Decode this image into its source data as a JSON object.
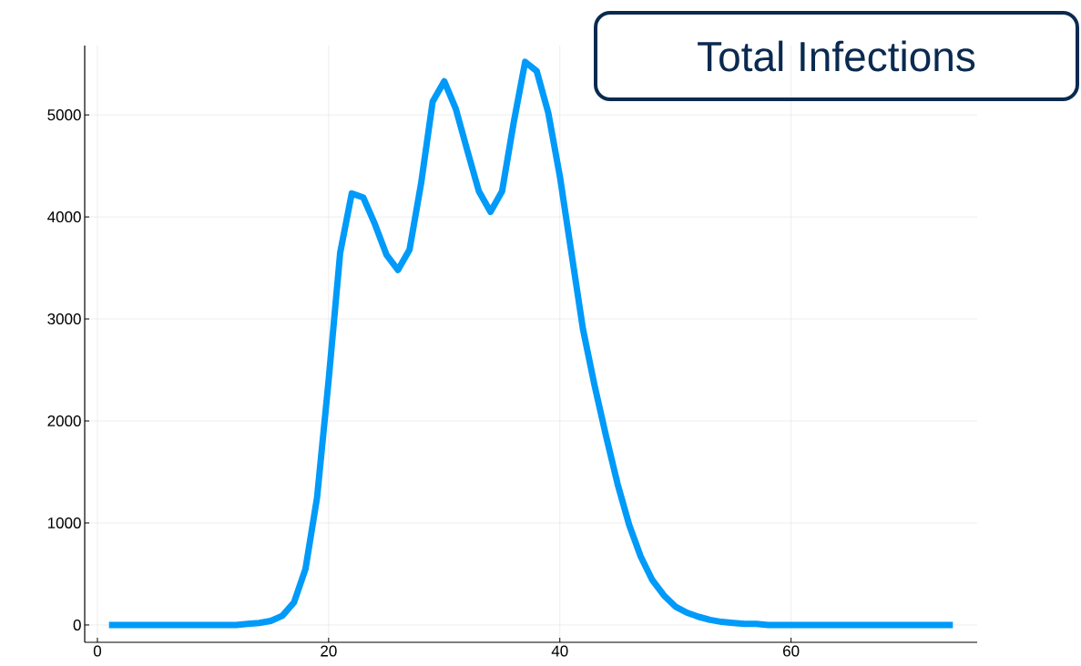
{
  "chart_data": {
    "type": "line",
    "title": "Total Infections",
    "x": [
      1,
      2,
      3,
      4,
      5,
      6,
      7,
      8,
      9,
      10,
      11,
      12,
      13,
      14,
      15,
      16,
      17,
      18,
      19,
      20,
      21,
      22,
      23,
      24,
      25,
      26,
      27,
      28,
      29,
      30,
      31,
      32,
      33,
      34,
      35,
      36,
      37,
      38,
      39,
      40,
      41,
      42,
      43,
      44,
      45,
      46,
      47,
      48,
      49,
      50,
      51,
      52,
      53,
      54,
      55,
      56,
      57,
      58,
      59,
      60,
      61,
      62,
      63,
      64,
      65,
      66,
      67,
      68,
      69,
      70,
      71,
      72,
      73,
      74
    ],
    "series": [
      {
        "color": "#009af9",
        "values": [
          0,
          0,
          0,
          0,
          0,
          0,
          0,
          0,
          0,
          0,
          0,
          0,
          10,
          20,
          40,
          90,
          220,
          550,
          1250,
          2400,
          3650,
          4230,
          4190,
          3930,
          3630,
          3480,
          3680,
          4330,
          5130,
          5330,
          5060,
          4650,
          4250,
          4050,
          4250,
          4920,
          5520,
          5430,
          5020,
          4400,
          3650,
          2900,
          2350,
          1850,
          1380,
          980,
          670,
          440,
          290,
          180,
          120,
          80,
          50,
          30,
          20,
          10,
          10,
          0,
          0,
          0,
          0,
          0,
          0,
          0,
          0,
          0,
          0,
          0,
          0,
          0,
          0,
          0,
          0,
          0
        ]
      }
    ],
    "xlim": [
      -1.1,
      76.1
    ],
    "ylim": [
      -170,
      5680
    ],
    "xticks": [
      0,
      20,
      40,
      60
    ],
    "yticks": [
      0,
      1000,
      2000,
      3000,
      4000,
      5000
    ],
    "grid": true,
    "marker": "none",
    "line_style": "solid"
  }
}
